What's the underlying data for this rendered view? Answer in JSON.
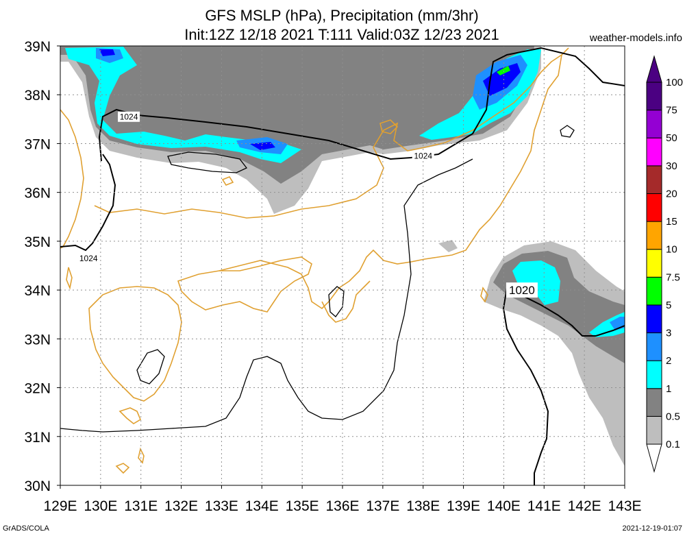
{
  "header": {
    "title_line1": "GFS MSLP (hPa), Precipitation (mm/3hr)",
    "title_line2": "Init:12Z 12/18 2021 T:111 Valid:03Z 12/23 2021",
    "source": "weather-models.info"
  },
  "footer": {
    "left": "GrADS/COLA",
    "right": "2021-12-19-01:07"
  },
  "map": {
    "lon_range": [
      129,
      143
    ],
    "lat_range": [
      30,
      39
    ],
    "lon_labels": [
      "129E",
      "130E",
      "131E",
      "132E",
      "133E",
      "134E",
      "135E",
      "136E",
      "137E",
      "138E",
      "139E",
      "140E",
      "141E",
      "142E",
      "143E"
    ],
    "lat_labels": [
      "30N",
      "31N",
      "32N",
      "33N",
      "34N",
      "35N",
      "36N",
      "37N",
      "38N",
      "39N"
    ],
    "gridlines": "dotted",
    "isobar_labels": [
      {
        "text": "1024",
        "lon": 130.7,
        "lat": 37.55
      },
      {
        "text": "1024",
        "lon": 138.0,
        "lat": 36.75
      },
      {
        "text": "1024",
        "lon": 129.7,
        "lat": 34.65
      },
      {
        "text": "1020",
        "lon": 140.45,
        "lat": 34.0
      }
    ]
  },
  "colorbar": {
    "labels": [
      "0.1",
      "0.5",
      "1",
      "2",
      "3",
      "5",
      "7.5",
      "10",
      "15",
      "20",
      "30",
      "50",
      "75",
      "100"
    ],
    "colors": [
      "#ffffff",
      "#bebebe",
      "#828282",
      "#00ffff",
      "#1e90ff",
      "#0000ff",
      "#00ff00",
      "#ffff00",
      "#ffa500",
      "#ff0000",
      "#a52a2a",
      "#ff00ff",
      "#9400d3",
      "#4b0082"
    ]
  },
  "colors": {
    "coast": "#e0a030",
    "isobar": "#000000",
    "grid": "#909090"
  }
}
